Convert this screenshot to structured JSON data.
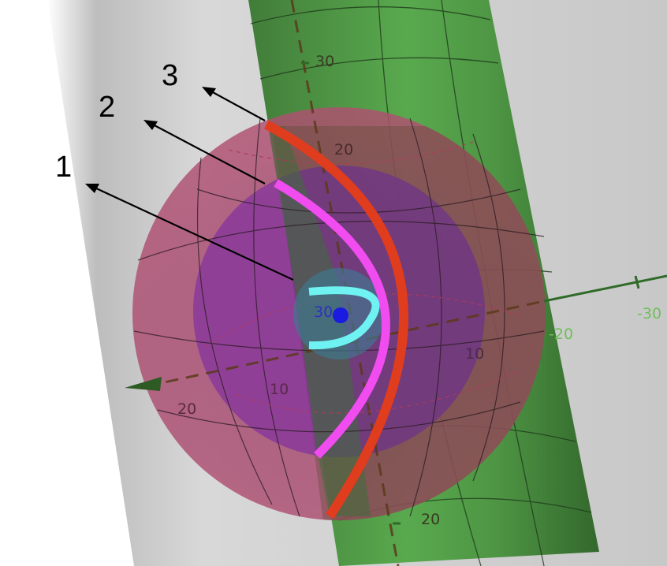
{
  "callouts": [
    {
      "label": "1",
      "curve": "inner-cyan-arc"
    },
    {
      "label": "2",
      "curve": "middle-magenta-arc"
    },
    {
      "label": "3",
      "curve": "outer-red-arc"
    }
  ],
  "axis_ticks": {
    "cylinder_top": "30",
    "cylinder_upper": "20",
    "cylinder_bottom": "20",
    "horizontal_near": "-20",
    "horizontal_far": "-30",
    "diag_10": "10",
    "diag_20": "20",
    "inner_10": "10",
    "center_30": "30"
  },
  "colors": {
    "background": "#ffffff",
    "gray_plane": "#d6d6d6",
    "green_cylinder": "#4f9a45",
    "outer_sphere": "#a84a68",
    "middle_sphere": "#8a3a9a",
    "inner_sphere": "#3f7a90",
    "curve_1": "#6ff2f2",
    "curve_2": "#f04cf0",
    "curve_3": "#e03c1e",
    "center_point": "#1a1ae0",
    "arrow": "#000000"
  }
}
